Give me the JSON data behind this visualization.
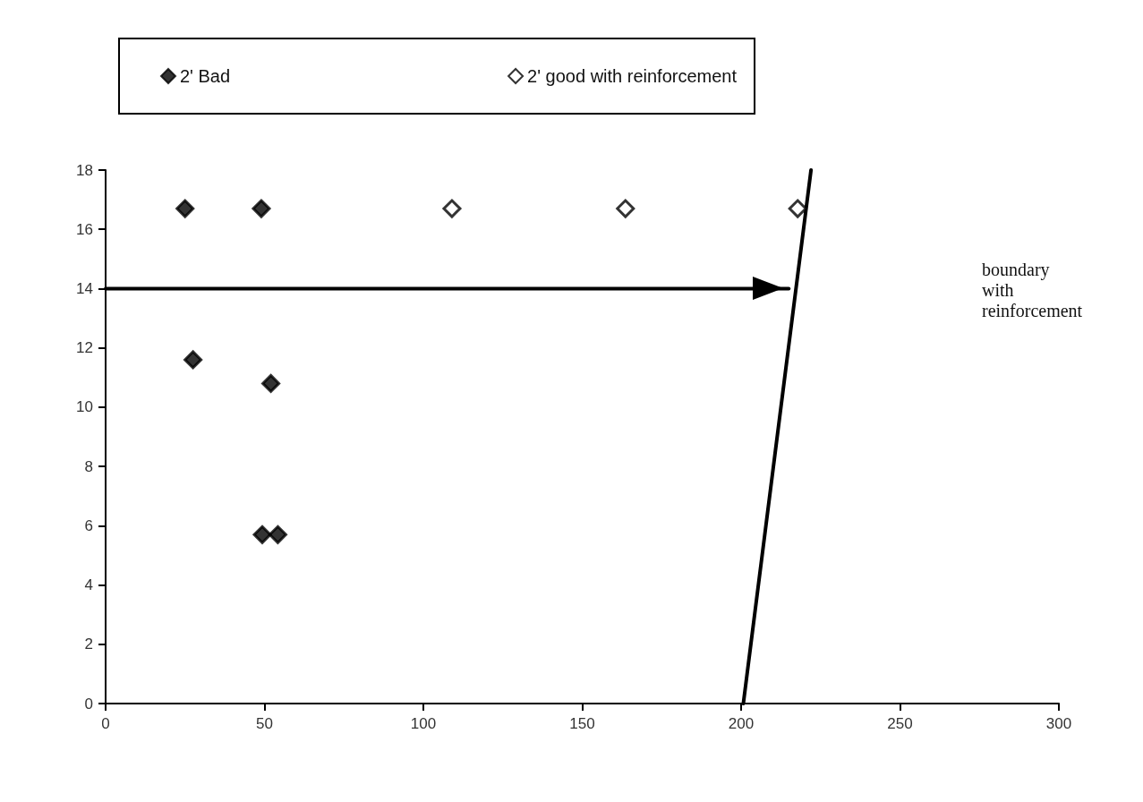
{
  "chart_data": {
    "type": "scatter",
    "marker": "diamond",
    "legend": "top",
    "xlim": [
      0,
      300
    ],
    "xticks": [
      0,
      50,
      100,
      150,
      200,
      250,
      300
    ],
    "ylim": [
      0,
      18
    ],
    "yticks": [
      0,
      2,
      4,
      6,
      8,
      10,
      12,
      14,
      16,
      18
    ],
    "series": [
      {
        "name": "2' Bad",
        "color": "#000000",
        "x": [
          25,
          49,
          27.5,
          52,
          49.3,
          54.2
        ],
        "values": [
          16.7,
          16.7,
          11.6,
          10.8,
          5.7,
          5.7
        ]
      },
      {
        "name": "2' good with reinforcement",
        "color": "#ffffff",
        "x": [
          109,
          163.6,
          217.8
        ],
        "values": [
          16.7,
          16.7,
          16.7
        ]
      },
      {
        "type": "line",
        "color": "#000000",
        "marker": "none",
        "x": [
          200.7,
          222
        ],
        "values": [
          0,
          18
        ]
      },
      {
        "type": "line",
        "color": "#000000",
        "marker": "none",
        "x": [
          0,
          215
        ],
        "values": [
          14,
          14
        ]
      }
    ],
    "annotations": [
      "boundary with reinforcement"
    ]
  }
}
